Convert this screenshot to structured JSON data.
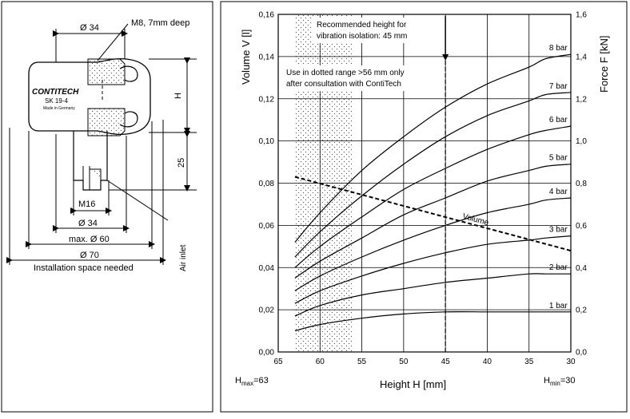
{
  "drawing": {
    "dim_top_dia": "Ø 34",
    "thread_note": "M8, 7mm deep",
    "brand_text": "CONTITECH",
    "model_text": "SK 19-4",
    "small_print": "Made in Germany",
    "dim_h": "H",
    "dim_25": "25",
    "dim_m16": "M16",
    "dim_bottom_dia": "Ø 34",
    "dim_max": "max. Ø 60",
    "dim_70": "Ø 70",
    "install_note": "Installation space needed",
    "air_inlet": "Air inlet"
  },
  "chart_data": {
    "type": "line",
    "xlabel": "Height H [mm]",
    "ylabel_left": "Volume V [l]",
    "ylabel_right": "Force F [kN]",
    "x_reversed": true,
    "xlim": [
      65,
      30
    ],
    "ylim_left": [
      0,
      0.16
    ],
    "ylim_right": [
      0,
      1.6
    ],
    "x_ticks": [
      65,
      60,
      55,
      50,
      45,
      40,
      35,
      30
    ],
    "y_ticks_left": [
      "0,00",
      "0,02",
      "0,04",
      "0,06",
      "0,08",
      "0,10",
      "0,12",
      "0,14",
      "0,16"
    ],
    "y_ticks_right": [
      "0,0",
      "0,2",
      "0,4",
      "0,6",
      "0,8",
      "1,0",
      "1,2",
      "1,4",
      "1,6"
    ],
    "grid": true,
    "dotted_range": [
      63,
      56
    ],
    "recommended_height": 45,
    "annotation_recommended": "Recommended height for vibration isolation: 45 mm",
    "annotation_recommended_lines": [
      "Recommended height for",
      "vibration isolation: 45 mm"
    ],
    "annotation_dotted_lines": [
      "Use in dotted range >56 mm only",
      "after consultation with ContiTech"
    ],
    "hmax_label": "H",
    "hmax_sub": "max",
    "hmax_value": "=63",
    "hmin_label": "H",
    "hmin_sub": "min",
    "hmin_value": "=30",
    "volume_label": "Volume",
    "volume_curve": {
      "name": "Volume",
      "x": [
        63,
        30
      ],
      "y": [
        0.083,
        0.048
      ]
    },
    "force_series": [
      {
        "name": "1 bar",
        "x": [
          63,
          60,
          55,
          50,
          45,
          40,
          35,
          33,
          30
        ],
        "y": [
          0.1,
          0.13,
          0.16,
          0.18,
          0.19,
          0.19,
          0.19,
          0.19,
          0.19
        ]
      },
      {
        "name": "2 bar",
        "x": [
          63,
          60,
          55,
          50,
          45,
          40,
          35,
          33,
          30
        ],
        "y": [
          0.17,
          0.22,
          0.27,
          0.3,
          0.33,
          0.35,
          0.37,
          0.37,
          0.37
        ]
      },
      {
        "name": "3 bar",
        "x": [
          63,
          60,
          55,
          50,
          45,
          40,
          35,
          33,
          30
        ],
        "y": [
          0.23,
          0.29,
          0.36,
          0.42,
          0.47,
          0.51,
          0.53,
          0.54,
          0.55
        ]
      },
      {
        "name": "4 bar",
        "x": [
          63,
          60,
          55,
          50,
          45,
          40,
          35,
          33,
          30
        ],
        "y": [
          0.29,
          0.36,
          0.45,
          0.53,
          0.6,
          0.66,
          0.7,
          0.72,
          0.73
        ]
      },
      {
        "name": "5 bar",
        "x": [
          63,
          60,
          55,
          50,
          45,
          40,
          35,
          33,
          30
        ],
        "y": [
          0.35,
          0.43,
          0.54,
          0.65,
          0.73,
          0.81,
          0.86,
          0.88,
          0.89
        ]
      },
      {
        "name": "6 bar",
        "x": [
          63,
          60,
          55,
          50,
          45,
          40,
          35,
          33,
          30
        ],
        "y": [
          0.4,
          0.5,
          0.64,
          0.77,
          0.87,
          0.96,
          1.03,
          1.05,
          1.07
        ]
      },
      {
        "name": "7 bar",
        "x": [
          63,
          60,
          55,
          50,
          45,
          40,
          35,
          33,
          30
        ],
        "y": [
          0.45,
          0.57,
          0.74,
          0.89,
          1.02,
          1.12,
          1.19,
          1.22,
          1.23
        ]
      },
      {
        "name": "8 bar",
        "x": [
          63,
          60,
          55,
          50,
          45,
          40,
          35,
          33,
          30
        ],
        "y": [
          0.52,
          0.66,
          0.86,
          1.02,
          1.16,
          1.27,
          1.35,
          1.39,
          1.41
        ]
      }
    ]
  }
}
